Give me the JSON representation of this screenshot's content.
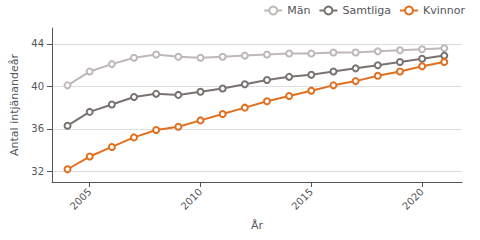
{
  "chart_data": {
    "type": "line",
    "xlabel": "År",
    "ylabel": "Antal intjänandeår",
    "x": [
      2004,
      2005,
      2006,
      2007,
      2008,
      2009,
      2010,
      2011,
      2012,
      2013,
      2014,
      2015,
      2016,
      2017,
      2018,
      2019,
      2020,
      2021
    ],
    "series": [
      {
        "name": "Män",
        "color": "#c0b8b8",
        "values": [
          40.1,
          41.4,
          42.1,
          42.7,
          43.0,
          42.8,
          42.7,
          42.8,
          42.9,
          43.0,
          43.1,
          43.1,
          43.2,
          43.2,
          43.3,
          43.4,
          43.5,
          43.6
        ]
      },
      {
        "name": "Samtliga",
        "color": "#7a7270",
        "values": [
          36.3,
          37.6,
          38.3,
          39.0,
          39.3,
          39.2,
          39.5,
          39.8,
          40.2,
          40.6,
          40.9,
          41.1,
          41.4,
          41.7,
          42.0,
          42.3,
          42.6,
          42.9
        ]
      },
      {
        "name": "Kvinnor",
        "color": "#e07020",
        "values": [
          32.2,
          33.4,
          34.3,
          35.2,
          35.9,
          36.2,
          36.8,
          37.4,
          38.0,
          38.6,
          39.1,
          39.6,
          40.1,
          40.5,
          41.0,
          41.4,
          41.9,
          42.3
        ]
      }
    ],
    "xlim": [
      2003.3,
      2021.8
    ],
    "xticks": [
      2005,
      2010,
      2015,
      2020
    ],
    "ylim": [
      31.0,
      45.5
    ],
    "yticks": [
      32,
      36,
      40,
      44
    ],
    "grid": true,
    "legend": "upper right",
    "marker": "circle"
  }
}
